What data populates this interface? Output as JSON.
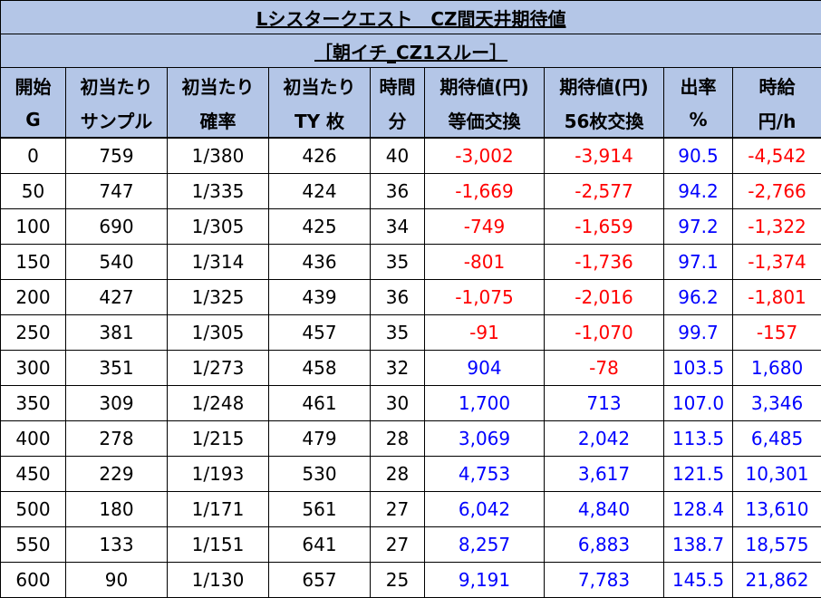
{
  "title": "Lシスタークエスト　CZ間天井期待値",
  "subtitle": "［朝イチ_CZ1スルー］",
  "headers": [
    [
      "開始",
      "G"
    ],
    [
      "初当たり",
      "サンプル"
    ],
    [
      "初当たり",
      "確率"
    ],
    [
      "初当たり",
      "TY 枚"
    ],
    [
      "時間",
      "分"
    ],
    [
      "期待値(円)",
      "等価交換"
    ],
    [
      "期待値(円)",
      "56枚交換"
    ],
    [
      "出率",
      "%"
    ],
    [
      "時給",
      "円/h"
    ]
  ],
  "rows": [
    [
      "0",
      "759",
      "1/380",
      "426",
      "40",
      "-3,002",
      "-3,914",
      "90.5",
      "-4,542"
    ],
    [
      "50",
      "747",
      "1/335",
      "424",
      "36",
      "-1,669",
      "-2,577",
      "94.2",
      "-2,766"
    ],
    [
      "100",
      "690",
      "1/305",
      "425",
      "34",
      "-749",
      "-1,659",
      "97.2",
      "-1,322"
    ],
    [
      "150",
      "540",
      "1/314",
      "436",
      "35",
      "-801",
      "-1,736",
      "97.1",
      "-1,374"
    ],
    [
      "200",
      "427",
      "1/325",
      "439",
      "36",
      "-1,075",
      "-2,016",
      "96.2",
      "-1,801"
    ],
    [
      "250",
      "381",
      "1/305",
      "457",
      "35",
      "-91",
      "-1,070",
      "99.7",
      "-157"
    ],
    [
      "300",
      "351",
      "1/273",
      "458",
      "32",
      "904",
      "-78",
      "103.5",
      "1,680"
    ],
    [
      "350",
      "309",
      "1/248",
      "461",
      "30",
      "1,700",
      "713",
      "107.0",
      "3,346"
    ],
    [
      "400",
      "278",
      "1/215",
      "479",
      "28",
      "3,069",
      "2,042",
      "113.5",
      "6,485"
    ],
    [
      "450",
      "229",
      "1/193",
      "530",
      "28",
      "4,753",
      "3,617",
      "121.5",
      "10,301"
    ],
    [
      "500",
      "180",
      "1/171",
      "561",
      "27",
      "6,042",
      "4,840",
      "128.4",
      "13,610"
    ],
    [
      "550",
      "133",
      "1/151",
      "641",
      "27",
      "8,257",
      "6,883",
      "138.7",
      "18,575"
    ],
    [
      "600",
      "90",
      "1/130",
      "657",
      "25",
      "9,191",
      "7,783",
      "145.5",
      "21,862"
    ]
  ],
  "colors": {
    "header_bg": "#b4c6e7",
    "negative": "#ff0000",
    "positive": "#0000ff"
  }
}
